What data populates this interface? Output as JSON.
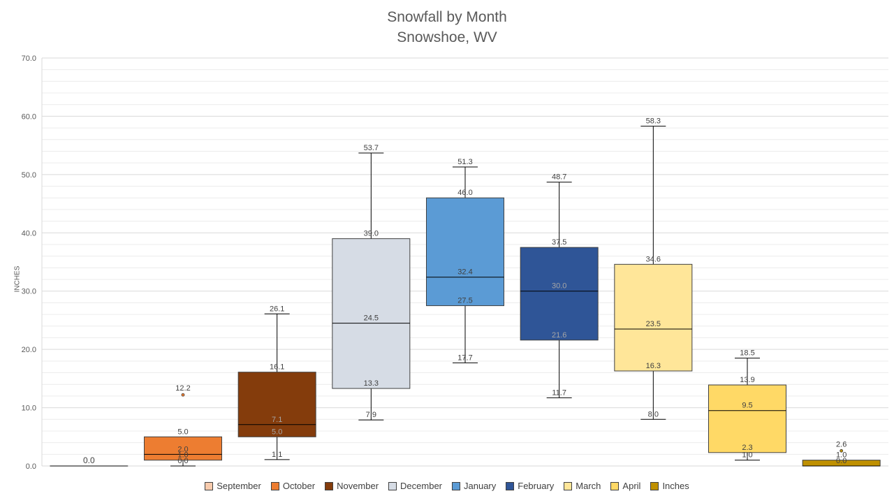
{
  "chart_data": {
    "type": "boxplot",
    "title": "Snowfall by Month",
    "subtitle": "Snowshoe, WV",
    "ylabel": "INCHES",
    "ylim": [
      0,
      70
    ],
    "yticks": [
      "0.0",
      "10.0",
      "20.0",
      "30.0",
      "40.0",
      "50.0",
      "60.0",
      "70.0"
    ],
    "grid": true,
    "legend_position": "bottom",
    "series": [
      {
        "name": "September",
        "color": "#F8CBAD",
        "min": 0.0,
        "q1": 0.0,
        "median": 0.0,
        "q3": 0.0,
        "max": 0.0,
        "outliers": [],
        "labels": {
          "single": "0.0"
        }
      },
      {
        "name": "October",
        "color": "#ED7D31",
        "min": 0.0,
        "q1": 1.0,
        "median": 2.0,
        "q3": 5.0,
        "max": 5.0,
        "outliers": [
          12.2
        ],
        "labels": {
          "max": "5.0",
          "q3": "5.0",
          "median": "2.0",
          "q1": "1.0",
          "min": "0.0",
          "outlier": "12.2"
        }
      },
      {
        "name": "November",
        "color": "#843C0C",
        "min": 1.1,
        "q1": 5.0,
        "median": 7.1,
        "q3": 16.1,
        "max": 26.1,
        "outliers": [],
        "labels": {
          "max": "26.1",
          "q3": "16.1",
          "median": "7.1",
          "q1": "5.0",
          "min": "1.1"
        }
      },
      {
        "name": "December",
        "color": "#D6DCE5",
        "min": 7.9,
        "q1": 13.3,
        "median": 24.5,
        "q3": 39.0,
        "max": 53.7,
        "outliers": [],
        "labels": {
          "max": "53.7",
          "q3": "39.0",
          "median": "24.5",
          "q1": "13.3",
          "min": "7.9"
        }
      },
      {
        "name": "January",
        "color": "#5B9BD5",
        "min": 17.7,
        "q1": 27.5,
        "median": 32.4,
        "q3": 46.0,
        "max": 51.3,
        "outliers": [],
        "labels": {
          "max": "51.3",
          "q3": "46.0",
          "median": "32.4",
          "q1": "27.5",
          "min": "17.7"
        }
      },
      {
        "name": "February",
        "color": "#2F5597",
        "min": 11.7,
        "q1": 21.6,
        "median": 30.0,
        "q3": 37.5,
        "max": 48.7,
        "outliers": [],
        "labels": {
          "max": "48.7",
          "q3": "37.5",
          "median": "30.0",
          "q1": "21.6",
          "min": "11.7"
        }
      },
      {
        "name": "March",
        "color": "#FFE699",
        "min": 8.0,
        "q1": 16.3,
        "median": 23.5,
        "q3": 34.6,
        "max": 58.3,
        "outliers": [],
        "labels": {
          "max": "58.3",
          "q3": "34.6",
          "median": "23.5",
          "q1": "16.3",
          "min": "8.0"
        }
      },
      {
        "name": "April",
        "color": "#FFD966",
        "min": 1.0,
        "q1": 2.3,
        "median": 9.5,
        "q3": 13.9,
        "max": 18.5,
        "outliers": [],
        "labels": {
          "max": "18.5",
          "q3": "13.9",
          "median": "9.5",
          "q1": "2.3",
          "min": "1.0"
        }
      },
      {
        "name": "Inches",
        "color": "#BF9000",
        "min": 0.0,
        "q1": 0.0,
        "median": 0.0,
        "q3": 1.0,
        "max": 1.0,
        "outliers": [
          2.6
        ],
        "labels": {
          "outlier": "2.6",
          "q3": "1.0",
          "median": "0.0"
        }
      }
    ]
  }
}
